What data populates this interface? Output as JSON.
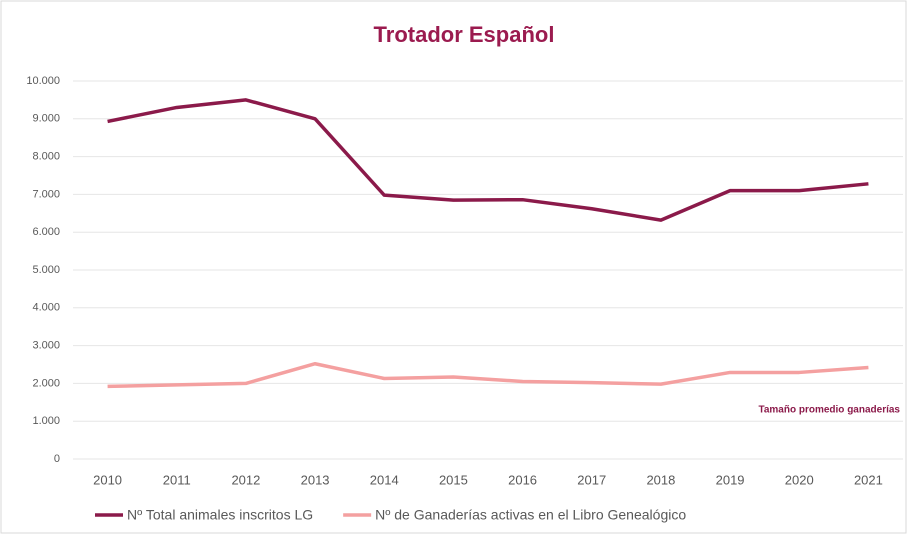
{
  "chart_data": {
    "type": "line",
    "title": "Trotador Español",
    "categories": [
      "2010",
      "2011",
      "2012",
      "2013",
      "2014",
      "2015",
      "2016",
      "2017",
      "2018",
      "2019",
      "2020",
      "2021"
    ],
    "series": [
      {
        "name": "Nº Total animales inscritos LG",
        "color": "#8b1a4a",
        "values": [
          8930,
          9300,
          9500,
          9000,
          6980,
          6850,
          6860,
          6620,
          6320,
          7100,
          7100,
          7280
        ]
      },
      {
        "name": "Nº de Ganaderías activas en el Libro Genealógico",
        "color": "#f4a0a0",
        "values": [
          1920,
          1960,
          2000,
          2520,
          2130,
          2170,
          2050,
          2020,
          1980,
          2290,
          2290,
          2420
        ]
      }
    ],
    "ylim": [
      0,
      10000
    ],
    "yticks": [
      0,
      {
        "value": 1000,
        "label": "1.000"
      },
      {
        "value": 2000,
        "label": "2.000"
      },
      {
        "value": 3000,
        "label": "3.000"
      },
      {
        "value": 4000,
        "label": "4.000"
      },
      {
        "value": 5000,
        "label": "5.000"
      },
      {
        "value": 6000,
        "label": "6.000"
      },
      {
        "value": 7000,
        "label": "7.000"
      },
      {
        "value": 8000,
        "label": "8.000"
      },
      {
        "value": 9000,
        "label": "9.000"
      },
      {
        "value": 10000,
        "label": "10.000"
      }
    ],
    "grid": true,
    "annotation": "Tamaño promedio ganaderías"
  }
}
